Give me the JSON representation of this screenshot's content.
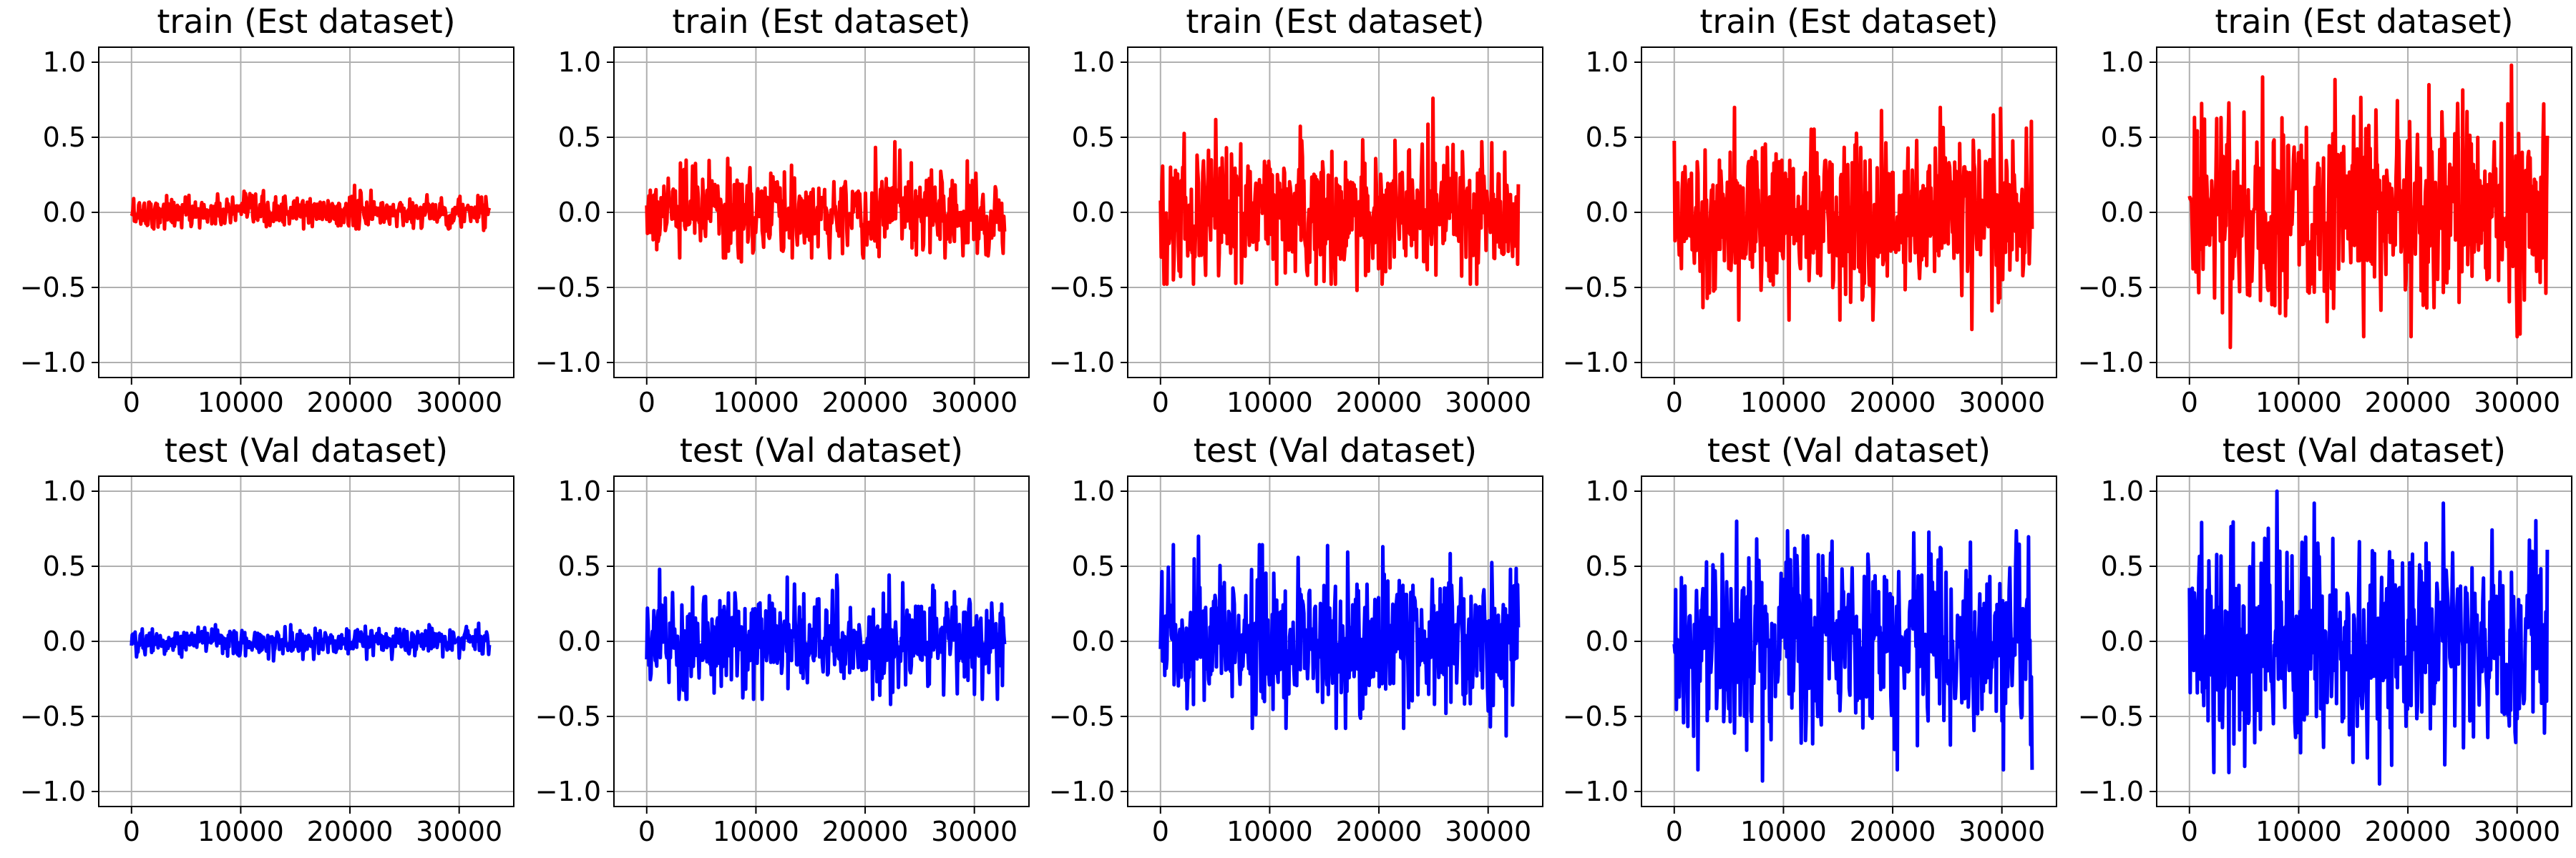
{
  "chart_data": [
    {
      "type": "line",
      "panel": "row1-col1",
      "title": "train (Est dataset)",
      "color": "#ff0000",
      "xlim": [
        -3000,
        35000
      ],
      "ylim": [
        -1.1,
        1.1
      ],
      "xticks": [
        0,
        10000,
        20000,
        30000
      ],
      "xtick_labels": [
        "0",
        "10000",
        "20000",
        "30000"
      ],
      "yticks": [
        -1.0,
        -0.5,
        0.0,
        0.5,
        1.0
      ],
      "ytick_labels": [
        "−1.0",
        "−0.5",
        "0.0",
        "0.5",
        "1.0"
      ],
      "grid": true,
      "n_points": 32768,
      "envelope": {
        "min": -0.12,
        "max": 0.18
      }
    },
    {
      "type": "line",
      "panel": "row1-col2",
      "title": "train (Est dataset)",
      "color": "#ff0000",
      "xlim": [
        -3000,
        35000
      ],
      "ylim": [
        -1.1,
        1.1
      ],
      "xticks": [
        0,
        10000,
        20000,
        30000
      ],
      "xtick_labels": [
        "0",
        "10000",
        "20000",
        "30000"
      ],
      "yticks": [
        -1.0,
        -0.5,
        0.0,
        0.5,
        1.0
      ],
      "ytick_labels": [
        "−1.0",
        "−0.5",
        "0.0",
        "0.5",
        "1.0"
      ],
      "grid": true,
      "n_points": 32768,
      "envelope": {
        "min": -0.33,
        "max": 0.47
      }
    },
    {
      "type": "line",
      "panel": "row1-col3",
      "title": "train (Est dataset)",
      "color": "#ff0000",
      "xlim": [
        -3000,
        35000
      ],
      "ylim": [
        -1.1,
        1.1
      ],
      "xticks": [
        0,
        10000,
        20000,
        30000
      ],
      "xtick_labels": [
        "0",
        "10000",
        "20000",
        "30000"
      ],
      "yticks": [
        -1.0,
        -0.5,
        0.0,
        0.5,
        1.0
      ],
      "ytick_labels": [
        "−1.0",
        "−0.5",
        "0.0",
        "0.5",
        "1.0"
      ],
      "grid": true,
      "n_points": 32768,
      "envelope": {
        "min": -0.52,
        "max": 0.76
      }
    },
    {
      "type": "line",
      "panel": "row1-col4",
      "title": "train (Est dataset)",
      "color": "#ff0000",
      "xlim": [
        -3000,
        35000
      ],
      "ylim": [
        -1.1,
        1.1
      ],
      "xticks": [
        0,
        10000,
        20000,
        30000
      ],
      "xtick_labels": [
        "0",
        "10000",
        "20000",
        "30000"
      ],
      "yticks": [
        -1.0,
        -0.5,
        0.0,
        0.5,
        1.0
      ],
      "ytick_labels": [
        "−1.0",
        "−0.5",
        "0.0",
        "0.5",
        "1.0"
      ],
      "grid": true,
      "n_points": 32768,
      "envelope": {
        "min": -0.78,
        "max": 0.76
      }
    },
    {
      "type": "line",
      "panel": "row1-col5",
      "title": "train (Est dataset)",
      "color": "#ff0000",
      "xlim": [
        -3000,
        35000
      ],
      "ylim": [
        -1.1,
        1.1
      ],
      "xticks": [
        0,
        10000,
        20000,
        30000
      ],
      "xtick_labels": [
        "0",
        "10000",
        "20000",
        "30000"
      ],
      "yticks": [
        -1.0,
        -0.5,
        0.0,
        0.5,
        1.0
      ],
      "ytick_labels": [
        "−1.0",
        "−0.5",
        "0.0",
        "0.5",
        "1.0"
      ],
      "grid": true,
      "n_points": 32768,
      "envelope": {
        "min": -0.9,
        "max": 0.98
      }
    },
    {
      "type": "line",
      "panel": "row2-col1",
      "title": "test (Val dataset)",
      "color": "#0000ff",
      "xlim": [
        -3000,
        35000
      ],
      "ylim": [
        -1.1,
        1.1
      ],
      "xticks": [
        0,
        10000,
        20000,
        30000
      ],
      "xtick_labels": [
        "0",
        "10000",
        "20000",
        "30000"
      ],
      "yticks": [
        -1.0,
        -0.5,
        0.0,
        0.5,
        1.0
      ],
      "ytick_labels": [
        "−1.0",
        "−0.5",
        "0.0",
        "0.5",
        "1.0"
      ],
      "grid": true,
      "n_points": 32768,
      "envelope": {
        "min": -0.13,
        "max": 0.12
      }
    },
    {
      "type": "line",
      "panel": "row2-col2",
      "title": "test (Val dataset)",
      "color": "#0000ff",
      "xlim": [
        -3000,
        35000
      ],
      "ylim": [
        -1.1,
        1.1
      ],
      "xticks": [
        0,
        10000,
        20000,
        30000
      ],
      "xtick_labels": [
        "0",
        "10000",
        "20000",
        "30000"
      ],
      "yticks": [
        -1.0,
        -0.5,
        0.0,
        0.5,
        1.0
      ],
      "ytick_labels": [
        "−1.0",
        "−0.5",
        "0.0",
        "0.5",
        "1.0"
      ],
      "grid": true,
      "n_points": 32768,
      "envelope": {
        "min": -0.42,
        "max": 0.48
      }
    },
    {
      "type": "line",
      "panel": "row2-col3",
      "title": "test (Val dataset)",
      "color": "#0000ff",
      "xlim": [
        -3000,
        35000
      ],
      "ylim": [
        -1.1,
        1.1
      ],
      "xticks": [
        0,
        10000,
        20000,
        30000
      ],
      "xtick_labels": [
        "0",
        "10000",
        "20000",
        "30000"
      ],
      "yticks": [
        -1.0,
        -0.5,
        0.0,
        0.5,
        1.0
      ],
      "ytick_labels": [
        "−1.0",
        "−0.5",
        "0.0",
        "0.5",
        "1.0"
      ],
      "grid": true,
      "n_points": 32768,
      "envelope": {
        "min": -0.63,
        "max": 0.7
      }
    },
    {
      "type": "line",
      "panel": "row2-col4",
      "title": "test (Val dataset)",
      "color": "#0000ff",
      "xlim": [
        -3000,
        35000
      ],
      "ylim": [
        -1.1,
        1.1
      ],
      "xticks": [
        0,
        10000,
        20000,
        30000
      ],
      "xtick_labels": [
        "0",
        "10000",
        "20000",
        "30000"
      ],
      "yticks": [
        -1.0,
        -0.5,
        0.0,
        0.5,
        1.0
      ],
      "ytick_labels": [
        "−1.0",
        "−0.5",
        "0.0",
        "0.5",
        "1.0"
      ],
      "grid": true,
      "n_points": 32768,
      "envelope": {
        "min": -0.93,
        "max": 0.8
      }
    },
    {
      "type": "line",
      "panel": "row2-col5",
      "title": "test (Val dataset)",
      "color": "#0000ff",
      "xlim": [
        -3000,
        35000
      ],
      "ylim": [
        -1.1,
        1.1
      ],
      "xticks": [
        0,
        10000,
        20000,
        30000
      ],
      "xtick_labels": [
        "0",
        "10000",
        "20000",
        "30000"
      ],
      "yticks": [
        -1.0,
        -0.5,
        0.0,
        0.5,
        1.0
      ],
      "ytick_labels": [
        "−1.0",
        "−0.5",
        "0.0",
        "0.5",
        "1.0"
      ],
      "grid": true,
      "n_points": 32768,
      "envelope": {
        "min": -0.95,
        "max": 1.0
      }
    }
  ]
}
